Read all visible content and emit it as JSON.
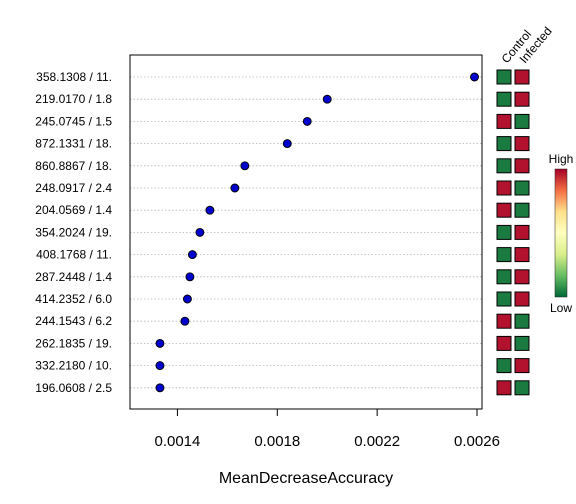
{
  "chart_data": {
    "type": "scatter",
    "xlabel": "MeanDecreaseAccuracy",
    "x_ticks": [
      "0.0014",
      "0.0018",
      "0.0022",
      "0.0026"
    ],
    "x_tick_values": [
      0.0014,
      0.0018,
      0.0022,
      0.0026
    ],
    "xlim": [
      0.00121,
      0.00262
    ],
    "grid": "horizontal-dotted",
    "point_color": "#0000cc",
    "categories": [
      "358.1308 / 11.",
      "219.0170 / 1.8",
      "245.0745 / 1.5",
      "872.1331 / 18.",
      "860.8867 / 18.",
      "248.0917 / 2.4",
      "204.0569 / 1.4",
      "354.2024 / 19.",
      "408.1768 / 11.",
      "287.2448 / 1.4",
      "414.2352 / 6.0",
      "244.1543 / 6.2",
      "262.1835 / 19.",
      "332.2180 / 10.",
      "196.0608 / 2.5"
    ],
    "values": [
      0.00259,
      0.002,
      0.00192,
      0.00184,
      0.00167,
      0.00163,
      0.00153,
      0.00149,
      0.00146,
      0.00145,
      0.00144,
      0.00143,
      0.00133,
      0.00133,
      0.00133
    ],
    "heatmap": {
      "groups": [
        "Control",
        "Infected"
      ],
      "levels": [
        [
          "low",
          "high"
        ],
        [
          "low",
          "high"
        ],
        [
          "high",
          "low"
        ],
        [
          "low",
          "high"
        ],
        [
          "low",
          "high"
        ],
        [
          "high",
          "low"
        ],
        [
          "high",
          "low"
        ],
        [
          "low",
          "high"
        ],
        [
          "low",
          "high"
        ],
        [
          "low",
          "high"
        ],
        [
          "low",
          "high"
        ],
        [
          "high",
          "low"
        ],
        [
          "high",
          "low"
        ],
        [
          "low",
          "high"
        ],
        [
          "high",
          "low"
        ]
      ],
      "colors": {
        "high": "#b2122e",
        "low": "#1a7a3f"
      }
    },
    "legend": {
      "high_label": "High",
      "low_label": "Low",
      "placement": "right",
      "gradient": [
        "#a50026",
        "#f46d43",
        "#fee08b",
        "#ffffbf",
        "#d9ef8b",
        "#66bd63",
        "#006837"
      ]
    }
  }
}
